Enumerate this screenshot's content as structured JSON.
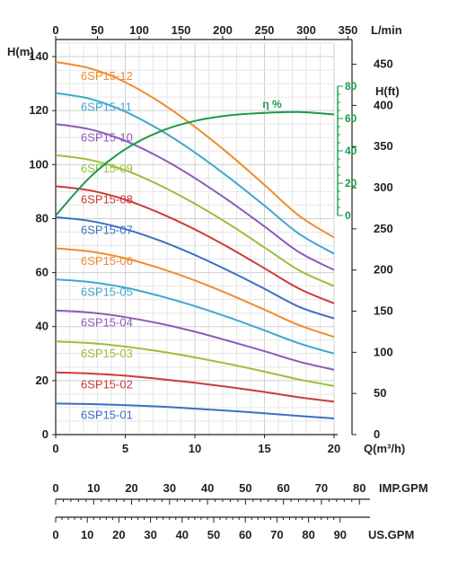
{
  "chart_data": {
    "type": "line",
    "x_axis_bottom": {
      "label": "Q(m³/h)",
      "ticks": [
        0,
        5,
        10,
        15,
        20
      ],
      "range": [
        0,
        20
      ]
    },
    "x_axis_top": {
      "label": "L/min",
      "ticks": [
        0,
        50,
        100,
        150,
        200,
        250,
        300,
        350
      ]
    },
    "y_axis_left": {
      "label": "H(m)",
      "ticks": [
        0,
        20,
        40,
        60,
        80,
        100,
        120,
        140
      ],
      "range": [
        0,
        145
      ]
    },
    "y_axis_right": {
      "label": "H(ft)",
      "ticks": [
        0,
        50,
        100,
        150,
        200,
        250,
        300,
        350,
        400,
        450
      ]
    },
    "efficiency_axis": {
      "label": "η %",
      "ticks": [
        0,
        20,
        40,
        60,
        80
      ],
      "color": "#1a9a4a"
    },
    "grid": true,
    "x": [
      0,
      2.5,
      5,
      7.5,
      10,
      12.5,
      15,
      17.5,
      20
    ],
    "series": [
      {
        "name": "6SP15-01",
        "color": "#3b6fc4",
        "values": [
          11.5,
          11.3,
          10.9,
          10.4,
          9.6,
          8.8,
          7.9,
          6.9,
          6.0
        ]
      },
      {
        "name": "6SP15-02",
        "color": "#cc3a3a",
        "values": [
          23,
          22.6,
          21.8,
          20.6,
          19.2,
          17.6,
          15.8,
          13.8,
          12.2
        ]
      },
      {
        "name": "6SP15-03",
        "color": "#9bbf3a",
        "values": [
          34.5,
          33.9,
          32.6,
          30.8,
          28.6,
          26.1,
          23.3,
          20.4,
          18.0
        ]
      },
      {
        "name": "6SP15-04",
        "color": "#8b5bb7",
        "values": [
          46,
          45.2,
          43.5,
          41.1,
          38.1,
          34.6,
          30.9,
          27.0,
          24.0
        ]
      },
      {
        "name": "6SP15-05",
        "color": "#3fa6cf",
        "values": [
          57.5,
          56.5,
          54.4,
          51.3,
          47.6,
          43.3,
          38.6,
          33.8,
          30.0
        ]
      },
      {
        "name": "6SP15-06",
        "color": "#f08c2e",
        "values": [
          69,
          67.8,
          65.3,
          61.6,
          57.1,
          51.9,
          46.3,
          40.5,
          36.2
        ]
      },
      {
        "name": "6SP15-07",
        "color": "#3b6fc4",
        "values": [
          80.5,
          79.1,
          76.1,
          71.8,
          66.5,
          60.5,
          54.0,
          47.3,
          43.0
        ]
      },
      {
        "name": "6SP15-08",
        "color": "#cc3a3a",
        "values": [
          92,
          90.4,
          87.0,
          82.0,
          76.0,
          69.1,
          61.6,
          54.0,
          48.6
        ]
      },
      {
        "name": "6SP15-09",
        "color": "#9bbf3a",
        "values": [
          103.5,
          101.7,
          97.9,
          92.3,
          85.5,
          77.8,
          69.3,
          60.8,
          55.0
        ]
      },
      {
        "name": "6SP15-10",
        "color": "#8b5bb7",
        "values": [
          115,
          113.0,
          108.8,
          102.6,
          95.0,
          86.4,
          77.1,
          67.5,
          61.0
        ]
      },
      {
        "name": "6SP15-11",
        "color": "#3fa6cf",
        "values": [
          126.5,
          124.3,
          119.6,
          112.8,
          104.5,
          95.0,
          84.8,
          74.3,
          67.0
        ]
      },
      {
        "name": "6SP15-12",
        "color": "#f08c2e",
        "values": [
          138,
          135.6,
          130.5,
          123.1,
          114.0,
          103.7,
          92.5,
          81.0,
          73.0
        ]
      }
    ],
    "efficiency": {
      "name": "η %",
      "color": "#1a9a4a",
      "x": [
        0,
        2.5,
        5,
        7.5,
        10,
        12.5,
        15,
        17.5,
        20
      ],
      "values": [
        0,
        24,
        41,
        52,
        58.5,
        62,
        63.5,
        64,
        62.5
      ]
    },
    "imp_gpm": {
      "label": "IMP.GPM",
      "ticks": [
        0,
        10,
        20,
        30,
        40,
        50,
        60,
        70,
        80
      ]
    },
    "us_gpm": {
      "label": "US.GPM",
      "ticks": [
        0,
        10,
        20,
        30,
        40,
        50,
        60,
        70,
        80,
        90
      ]
    }
  }
}
